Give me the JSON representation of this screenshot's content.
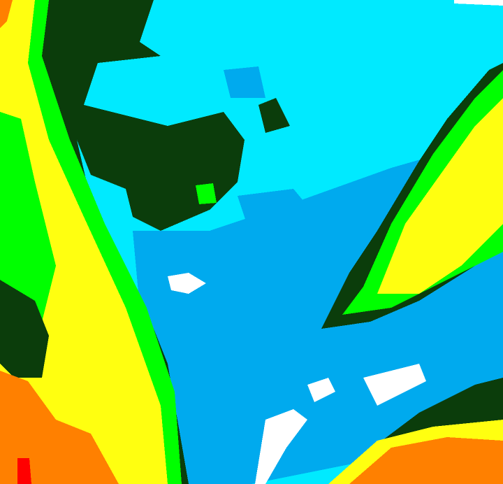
{
  "palette": {
    "cyan": "#00eaff",
    "light_blue": "#00aaee",
    "white": "#ffffff",
    "dark_green": "#0b3d0b",
    "green": "#00ff00",
    "yellow": "#ffff10",
    "orange": "#ff8000",
    "red": "#ff0000"
  }
}
